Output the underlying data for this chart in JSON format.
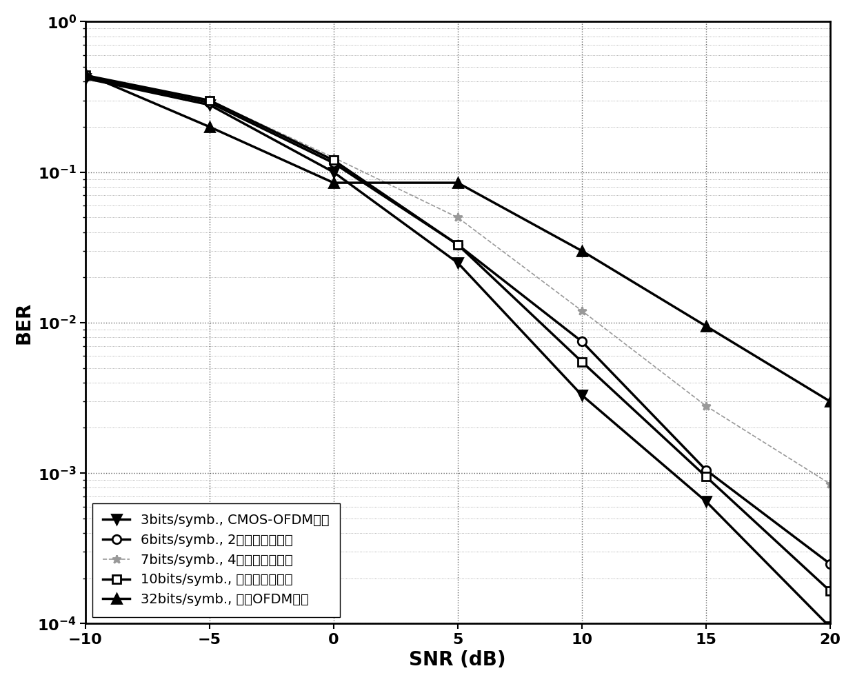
{
  "snr": [
    -10,
    -5,
    0,
    5,
    10,
    15,
    20
  ],
  "series": [
    {
      "label": "3bits/symb., CMOS-OFDM方法",
      "color": "#000000",
      "linewidth": 2.5,
      "linestyle": "-",
      "marker": "v",
      "markersize": 10,
      "markerfill": "black",
      "ber": [
        0.42,
        0.28,
        0.1,
        0.025,
        0.0033,
        0.00065,
        9.5e-05
      ]
    },
    {
      "label": "6bits/symb., 2个序列子集方法",
      "color": "#000000",
      "linewidth": 2.5,
      "linestyle": "-",
      "marker": "o",
      "markersize": 9,
      "markerfill": "white",
      "ber": [
        0.43,
        0.29,
        0.115,
        0.033,
        0.0075,
        0.00105,
        0.00025
      ]
    },
    {
      "label": "7bits/symb., 4个序列子集方法",
      "color": "#999999",
      "linewidth": 1.2,
      "linestyle": "--",
      "marker": "*",
      "markersize": 9,
      "markerfill": "#999999",
      "ber": [
        0.44,
        0.3,
        0.125,
        0.05,
        0.012,
        0.0028,
        0.00085
      ]
    },
    {
      "label": "10bits/symb., 本发明专利方法",
      "color": "#000000",
      "linewidth": 2.5,
      "linestyle": "-",
      "marker": "s",
      "markersize": 9,
      "markerfill": "white",
      "ber": [
        0.44,
        0.3,
        0.12,
        0.033,
        0.0055,
        0.00095,
        0.000165
      ]
    },
    {
      "label": "32bits/symb., 传统OFDM方法",
      "color": "#000000",
      "linewidth": 2.5,
      "linestyle": "-",
      "marker": "^",
      "markersize": 10,
      "markerfill": "black",
      "ber": [
        0.45,
        0.2,
        0.085,
        0.085,
        0.03,
        0.0095,
        0.003
      ]
    }
  ],
  "xlabel": "SNR (dB)",
  "ylabel": "BER",
  "xlim": [
    -10,
    20
  ],
  "ylim_min": 0.0001,
  "ylim_max": 1.0,
  "xticks": [
    -10,
    -5,
    0,
    5,
    10,
    15,
    20
  ],
  "legend_loc": "lower left",
  "background_color": "#ffffff",
  "font_size_label": 20,
  "font_size_tick": 16,
  "font_size_legend": 14
}
